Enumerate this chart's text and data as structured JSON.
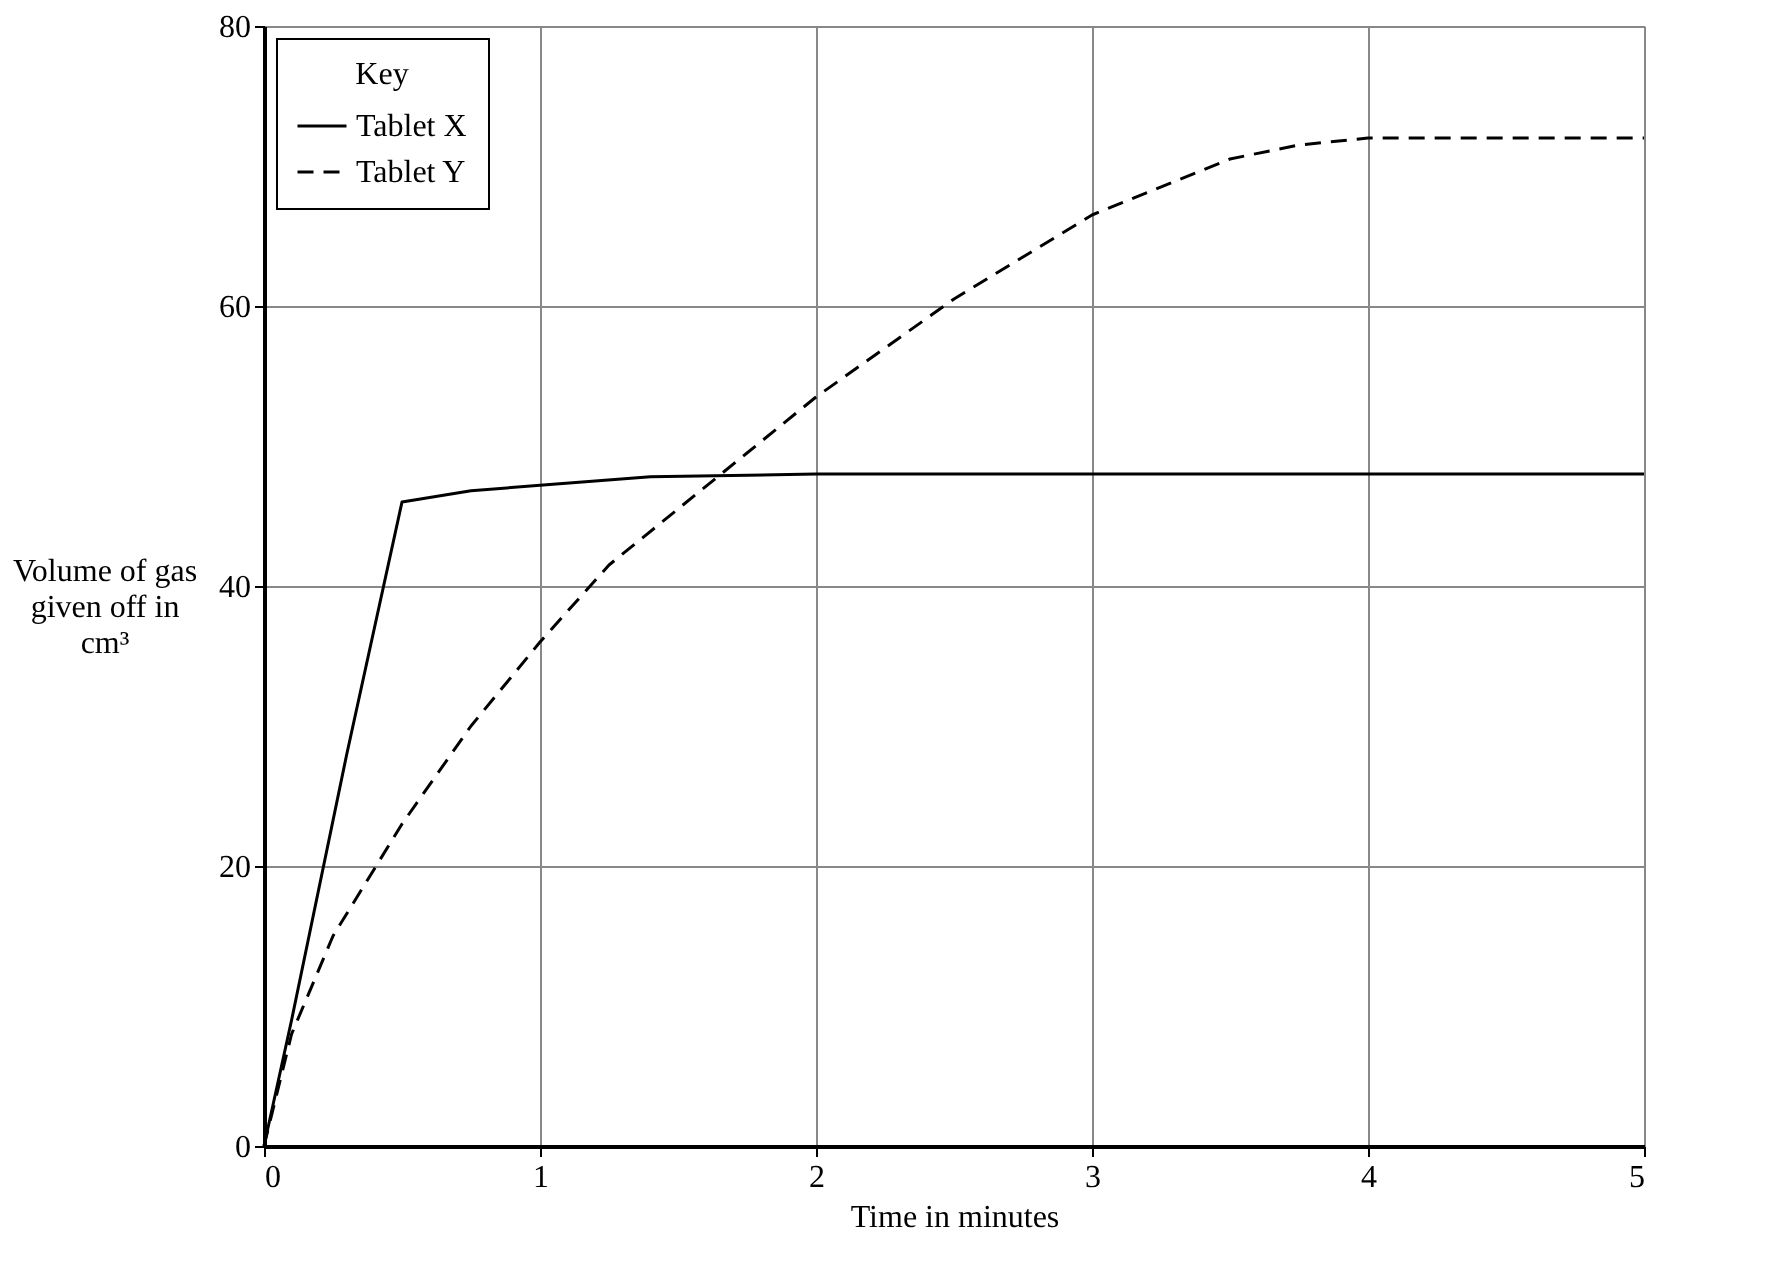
{
  "chart_data": {
    "type": "line",
    "xlabel": "Time in minutes",
    "ylabel": "Volume of gas given off in cm³",
    "legend_title": "Key",
    "xlim": [
      0,
      5
    ],
    "xticks": [
      0,
      1,
      2,
      3,
      4,
      5
    ],
    "ylim": [
      0,
      80
    ],
    "yticks": [
      0,
      20,
      40,
      60,
      80
    ],
    "grid": true,
    "legend": "top left",
    "marker": "none",
    "series": [
      {
        "name": "Tablet X",
        "color": "#000000",
        "line_style": "solid",
        "x": [
          0,
          0.1,
          0.3,
          0.5,
          0.75,
          1,
          1.4,
          2,
          3,
          4,
          5
        ],
        "values": [
          0,
          9,
          28,
          46,
          46.8,
          47.2,
          47.8,
          48,
          48,
          48,
          48
        ]
      },
      {
        "name": "Tablet Y",
        "color": "#000000",
        "line_style": "dashed",
        "x": [
          0,
          0.1,
          0.25,
          0.5,
          0.75,
          1,
          1.25,
          1.5,
          1.75,
          2,
          2.5,
          3,
          3.5,
          3.75,
          4,
          4.5,
          5
        ],
        "values": [
          0,
          8,
          15,
          23,
          30,
          36,
          41.5,
          45.5,
          49.5,
          53.5,
          60.5,
          66.5,
          70.5,
          71.5,
          72,
          72,
          72
        ]
      }
    ]
  }
}
